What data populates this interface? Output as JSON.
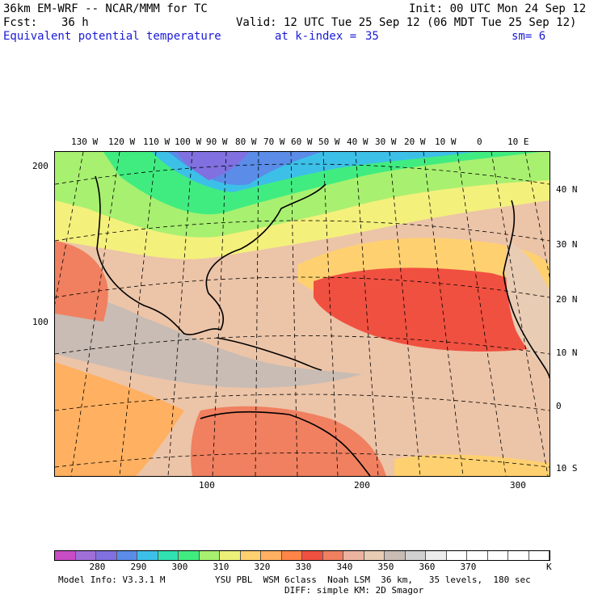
{
  "header": {
    "model_line": "36km EM-WRF -- NCAR/MMM for TC",
    "init_line": "Init: 00 UTC Mon 24 Sep 12",
    "fcst_label": "Fcst:",
    "fcst_value": "36 h",
    "valid_line": "Valid: 12 UTC Tue 25 Sep 12 (06 MDT Tue 25 Sep 12)",
    "field_name": "Equivalent potential temperature",
    "level_label": "at k-index =",
    "level_value": "35",
    "smoothing": "sm= 6"
  },
  "top_longitudes": [
    "130 W",
    "120 W",
    "110 W",
    "100 W",
    "90 W",
    "80 W",
    "70 W",
    "60 W",
    "50 W",
    "40 W",
    "30 W",
    "20 W",
    "10 W",
    "0",
    "10 E"
  ],
  "right_latitudes": [
    "40 N",
    "30 N",
    "20 N",
    "10 N",
    "0",
    "10 S"
  ],
  "left_ticks": [
    "200",
    "100"
  ],
  "bottom_ticks": [
    "100",
    "200",
    "300"
  ],
  "colorbar": {
    "colors": [
      "#c84cc4",
      "#a070d8",
      "#8070e0",
      "#5a8ce8",
      "#3cc0e8",
      "#30e0b0",
      "#40ec80",
      "#a8f070",
      "#ecf078",
      "#ffd070",
      "#ffb060",
      "#ff8448",
      "#f05040",
      "#f08060",
      "#ecb4a0",
      "#e8ccb4",
      "#c8bcb4",
      "#d0d0d0",
      "#ececec",
      "#ffffff",
      "#ffffff",
      "#ffffff",
      "#ffffff",
      "#ffffff"
    ],
    "labels": [
      "280",
      "290",
      "300",
      "310",
      "320",
      "330",
      "340",
      "350",
      "360",
      "370"
    ],
    "unit": "K"
  },
  "footer": {
    "model_info": "Model Info: V3.3.1 M",
    "physics": "YSU PBL  WSM 6class  Noah LSM  36 km,   35 levels,  180 sec",
    "diffusion": "DIFF: simple KM: 2D Smagor"
  }
}
